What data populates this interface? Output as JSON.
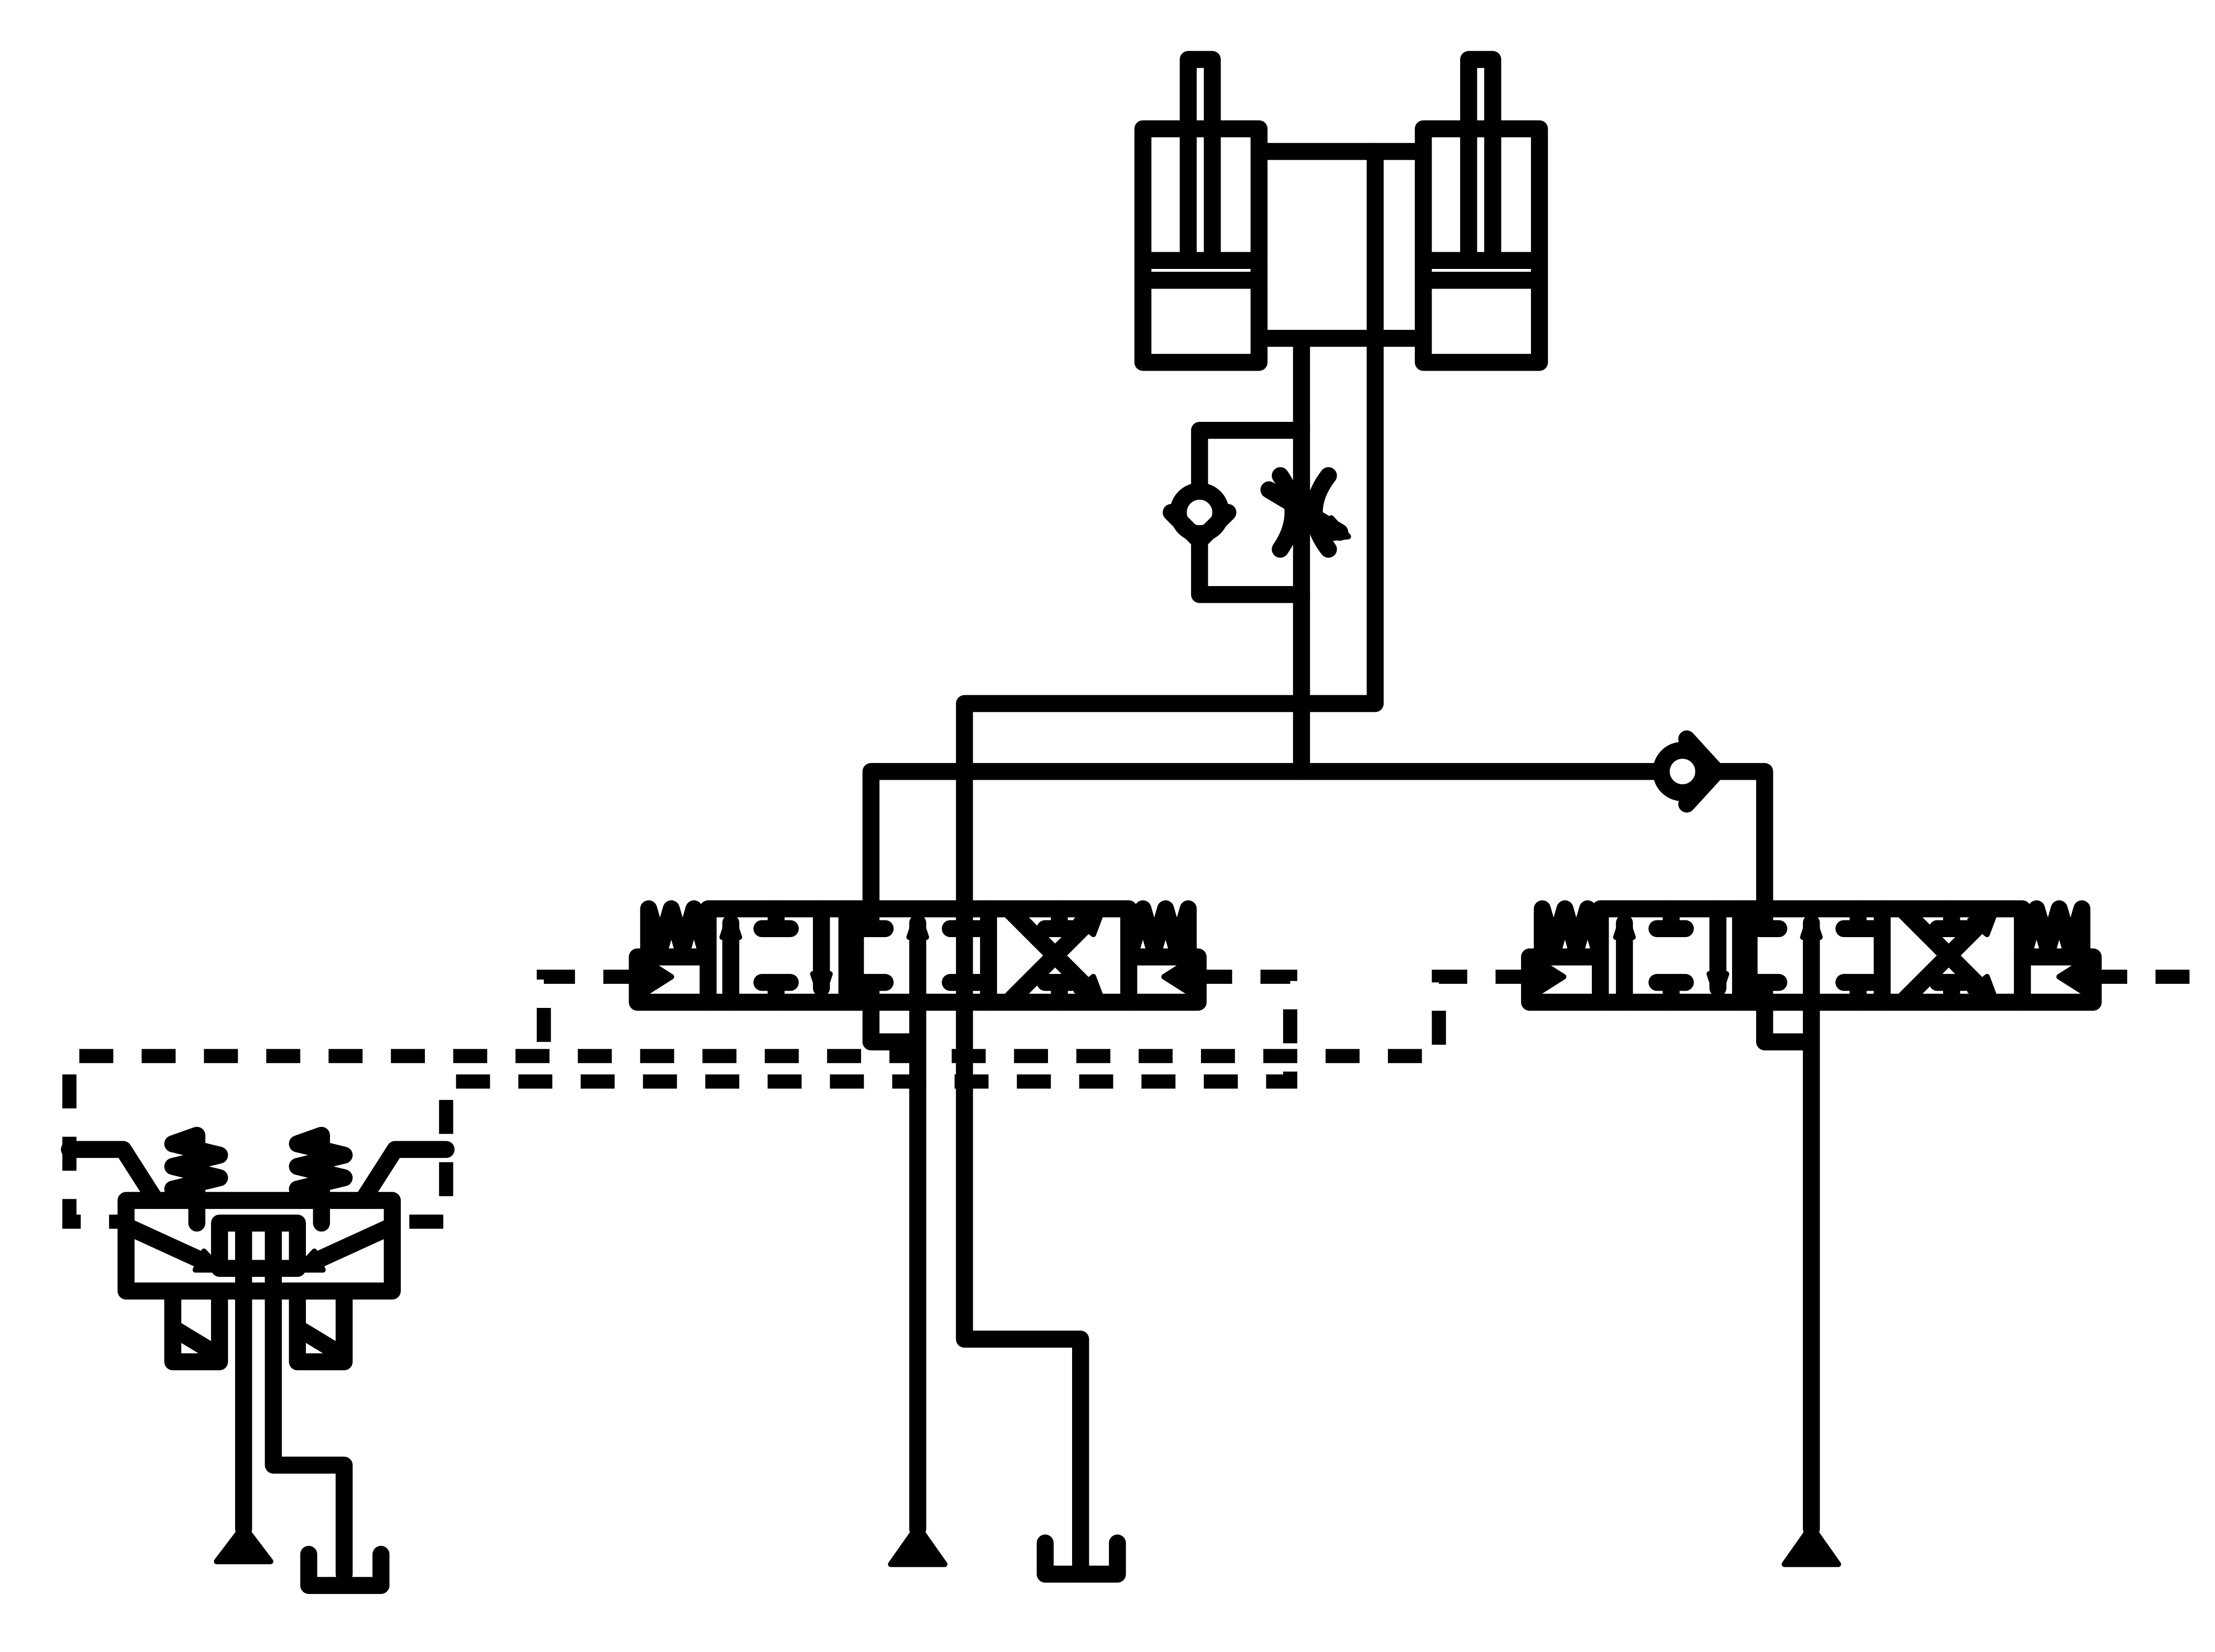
{
  "diagram": {
    "type": "hydraulic-schematic",
    "components": [
      {
        "name": "double-acting-cylinder-left",
        "symbol": "cylinder-icon"
      },
      {
        "name": "double-acting-cylinder-right",
        "symbol": "cylinder-icon"
      },
      {
        "name": "one-way-flow-control-valve",
        "symbol": "flow-control-icon"
      },
      {
        "name": "check-valve",
        "symbol": "check-valve-icon"
      },
      {
        "name": "directional-valve-left",
        "symbol": "valve-4-position-icon"
      },
      {
        "name": "directional-valve-right",
        "symbol": "valve-4-position-icon"
      },
      {
        "name": "pilot-valve",
        "symbol": "pilot-valve-icon"
      },
      {
        "name": "pressure-source-1",
        "symbol": "pressure-triangle-icon"
      },
      {
        "name": "pressure-source-2",
        "symbol": "pressure-triangle-icon"
      },
      {
        "name": "pressure-source-3",
        "symbol": "pressure-triangle-icon"
      },
      {
        "name": "tank-1",
        "symbol": "tank-icon"
      },
      {
        "name": "tank-2",
        "symbol": "tank-icon"
      }
    ],
    "colors": {
      "line": "#000000",
      "background": "#ffffff"
    }
  }
}
